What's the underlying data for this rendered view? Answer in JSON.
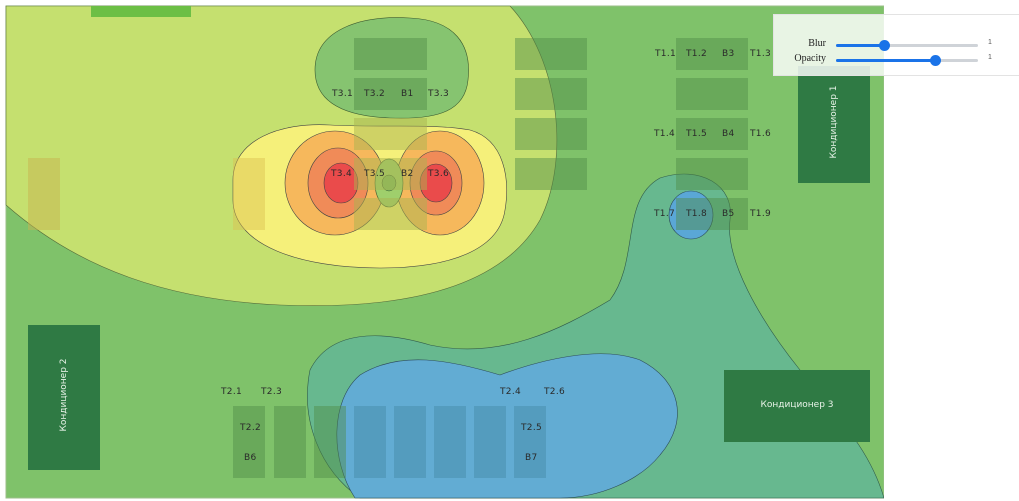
{
  "controls": {
    "blur": {
      "label": "Blur",
      "value_label": "1",
      "level": 0.34
    },
    "opacity": {
      "label": "Opacity",
      "value_label": "1",
      "level": 0.7
    }
  },
  "conditioners": {
    "ac1": "Кондиционер 1",
    "ac2": "Кондиционер 2",
    "ac3": "Кондиционер 3"
  },
  "sensors": {
    "t31": "T3.1",
    "t32": "T3.2",
    "b1": "B1",
    "t33": "T3.3",
    "t34": "T3.4",
    "t35": "T3.5",
    "b2": "B2",
    "t36": "T3.6",
    "t11": "T1.1",
    "t12": "T1.2",
    "b3": "B3",
    "t13": "T1.3",
    "t14": "T1.4",
    "t15": "T1.5",
    "b4": "B4",
    "t16": "T1.6",
    "t17": "T1.7",
    "t18": "T1.8",
    "b5": "B5",
    "t19": "T1.9",
    "t21": "T2.1",
    "t23": "T2.3",
    "t22": "T2.2",
    "b6": "B6",
    "t24": "T2.4",
    "t26": "T2.6",
    "t25": "T2.5",
    "b7": "B7"
  },
  "colors": {
    "base": "#7fbf6a",
    "cold": "#5aa7c7",
    "warm": "#c6df6e",
    "hot": "#f3ee74",
    "hotter": "#f2b857",
    "hottest": "#ea4b4b",
    "rack": "#5b9a55",
    "conditioner": "#2f7a44"
  }
}
